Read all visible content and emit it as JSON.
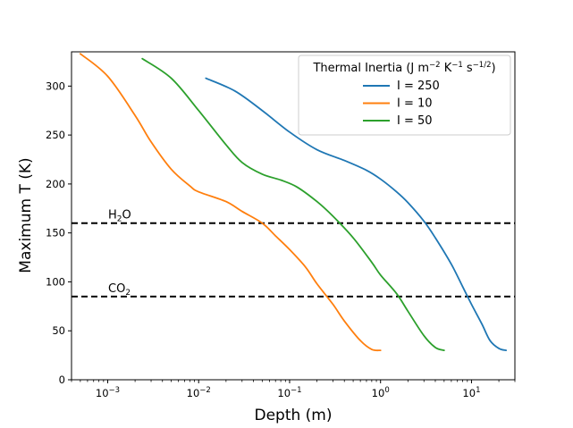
{
  "chart_data": {
    "type": "line",
    "title": "",
    "xlabel": "Depth (m)",
    "ylabel": "Maximum T (K)",
    "xscale": "log",
    "xlim": [
      0.0004,
      30
    ],
    "ylim": [
      0,
      335
    ],
    "x_ticks": [
      0.001,
      0.01,
      0.1,
      1,
      10
    ],
    "x_tick_labels": [
      {
        "base": "10",
        "exp": "−3"
      },
      {
        "base": "10",
        "exp": "−2"
      },
      {
        "base": "10",
        "exp": "−1"
      },
      {
        "base": "10",
        "exp": "0"
      },
      {
        "base": "10",
        "exp": "1"
      }
    ],
    "y_ticks": [
      0,
      50,
      100,
      150,
      200,
      250,
      300
    ],
    "y_tick_labels": [
      "0",
      "50",
      "100",
      "150",
      "200",
      "250",
      "300"
    ],
    "grid": false,
    "legend": {
      "placement": "top-right",
      "title_main": "Thermal Inertia (J m",
      "title_exp1": "−2",
      "title_mid1": " K",
      "title_exp2": "−1",
      "title_mid2": " s",
      "title_exp3": "−1/2",
      "title_end": ")"
    },
    "series": [
      {
        "name": "I = 250",
        "color": "#1f77b4",
        "x": [
          0.012,
          0.025,
          0.05,
          0.1,
          0.2,
          0.4,
          0.7,
          1.0,
          1.5,
          2.0,
          3.0,
          4.0,
          6.0,
          8.0,
          10,
          13,
          16,
          20,
          24
        ],
        "y": [
          308,
          295,
          275,
          253,
          235,
          224,
          214,
          205,
          192,
          181,
          162,
          145,
          118,
          95,
          77,
          57,
          40,
          32,
          30
        ]
      },
      {
        "name": "I = 10",
        "color": "#ff7f0e",
        "x": [
          0.0005,
          0.001,
          0.002,
          0.003,
          0.005,
          0.008,
          0.01,
          0.02,
          0.03,
          0.05,
          0.07,
          0.1,
          0.15,
          0.2,
          0.3,
          0.4,
          0.6,
          0.8,
          1.0
        ],
        "y": [
          333,
          310,
          270,
          243,
          215,
          198,
          192,
          182,
          172,
          160,
          147,
          133,
          115,
          98,
          77,
          60,
          40,
          31,
          30
        ]
      },
      {
        "name": "I = 50",
        "color": "#2ca02c",
        "x": [
          0.0024,
          0.005,
          0.01,
          0.02,
          0.03,
          0.05,
          0.08,
          0.12,
          0.2,
          0.3,
          0.5,
          0.8,
          1.0,
          1.5,
          2.0,
          3.0,
          4.0,
          5.0
        ],
        "y": [
          328,
          308,
          275,
          240,
          222,
          210,
          204,
          197,
          182,
          167,
          145,
          120,
          107,
          88,
          70,
          45,
          33,
          30
        ]
      }
    ],
    "hlines": [
      {
        "y": 160,
        "label_base": "H",
        "label_sub": "2",
        "label_end": "O",
        "style": "dashed",
        "color": "#000000"
      },
      {
        "y": 85,
        "label_base": "CO",
        "label_sub": "2",
        "label_end": "",
        "style": "dashed",
        "color": "#000000"
      }
    ]
  }
}
